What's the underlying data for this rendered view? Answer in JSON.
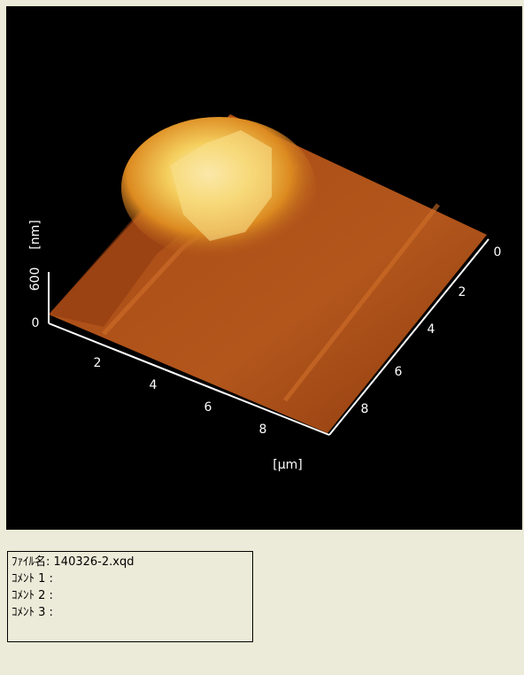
{
  "surface": {
    "z_axis": {
      "ticks": [
        0,
        600
      ],
      "unit": "[nm]"
    },
    "x_axis": {
      "ticks": [
        2,
        4,
        6,
        8
      ]
    },
    "y_axis": {
      "ticks": [
        0,
        2,
        4,
        6,
        8
      ]
    },
    "unit": "[μm]"
  },
  "info": {
    "file_name_label": "ﾌｧｲﾙ名:",
    "file_name": "140326-2.xqd",
    "comments": [
      "ｺﾒﾝﾄ 1 :",
      "ｺﾒﾝﾄ 2 :",
      "ｺﾒﾝﾄ 3 :"
    ]
  }
}
